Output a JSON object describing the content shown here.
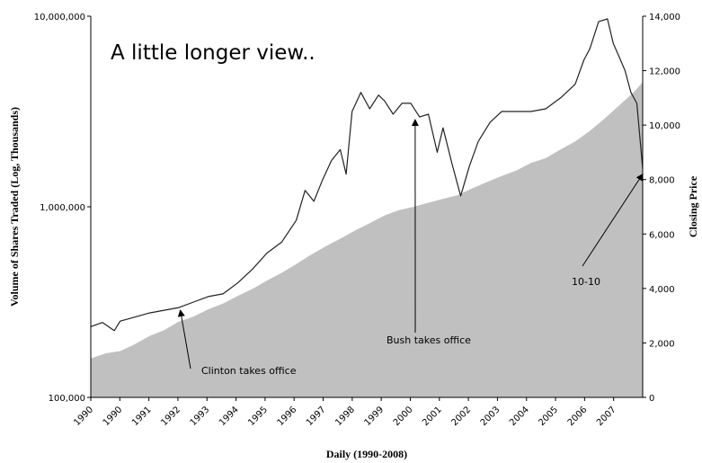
{
  "chart_data": {
    "type": "area",
    "title": "A little longer view..",
    "xlabel": "Daily (1990-2008)",
    "ylabel_left": "Volume of Shares Traded (Log, Thousands)",
    "ylabel_right": "Closing Price",
    "left_axis": {
      "scale": "log",
      "min": 100000,
      "max": 10000000,
      "ticks": [
        "100,000",
        "1,000,000",
        "10,000,000"
      ]
    },
    "right_axis": {
      "scale": "linear",
      "min": 0,
      "max": 14000,
      "ticks": [
        "0",
        "2,000",
        "4,000",
        "6,000",
        "8,000",
        "10,000",
        "12,000",
        "14,000"
      ]
    },
    "x_ticks": [
      "1990",
      "1990",
      "1991",
      "1992",
      "1993",
      "1994",
      "1995",
      "1996",
      "1997",
      "1998",
      "1999",
      "2000",
      "2001",
      "2002",
      "2003",
      "2004",
      "2005",
      "2006",
      "2007"
    ],
    "x_range": [
      1990.0,
      2008.8
    ],
    "series": [
      {
        "kind": "area",
        "axis": "left",
        "color": "#c0c0c0",
        "x": [
          1990.0,
          1990.5,
          1991.0,
          1991.5,
          1992.0,
          1992.5,
          1993.0,
          1993.5,
          1994.0,
          1994.5,
          1995.0,
          1995.5,
          1996.0,
          1996.5,
          1997.0,
          1997.5,
          1998.0,
          1998.5,
          1999.0,
          1999.5,
          2000.0,
          2000.5,
          2001.0,
          2001.5,
          2002.0,
          2002.5,
          2003.0,
          2003.5,
          2004.0,
          2004.5,
          2005.0,
          2005.5,
          2006.0,
          2006.5,
          2007.0,
          2007.5,
          2008.0,
          2008.5,
          2008.8
        ],
        "y": [
          160000,
          170000,
          175000,
          190000,
          210000,
          225000,
          250000,
          265000,
          290000,
          310000,
          340000,
          370000,
          410000,
          450000,
          500000,
          560000,
          620000,
          680000,
          750000,
          820000,
          900000,
          960000,
          1000000,
          1050000,
          1100000,
          1150000,
          1250000,
          1350000,
          1450000,
          1550000,
          1700000,
          1800000,
          2000000,
          2200000,
          2500000,
          2900000,
          3400000,
          4000000,
          4500000
        ]
      },
      {
        "kind": "line",
        "axis": "right",
        "color": "#222222",
        "x": [
          1990.0,
          1990.4,
          1990.8,
          1991.0,
          1991.5,
          1992.0,
          1992.5,
          1993.0,
          1993.5,
          1994.0,
          1994.5,
          1995.0,
          1995.5,
          1996.0,
          1996.5,
          1997.0,
          1997.3,
          1997.6,
          1997.9,
          1998.2,
          1998.5,
          1998.7,
          1998.9,
          1999.2,
          1999.5,
          1999.8,
          2000.0,
          2000.3,
          2000.6,
          2000.9,
          2001.2,
          2001.5,
          2001.8,
          2002.0,
          2002.3,
          2002.6,
          2002.9,
          2003.2,
          2003.6,
          2004.0,
          2004.5,
          2005.0,
          2005.5,
          2006.0,
          2006.5,
          2006.8,
          2007.0,
          2007.3,
          2007.6,
          2007.8,
          2008.0,
          2008.2,
          2008.4,
          2008.6,
          2008.8
        ],
        "y": [
          2600,
          2750,
          2450,
          2800,
          2950,
          3100,
          3200,
          3300,
          3500,
          3700,
          3800,
          4200,
          4700,
          5300,
          5700,
          6500,
          7600,
          7200,
          8000,
          8700,
          9100,
          8200,
          10500,
          11200,
          10600,
          11100,
          10900,
          10400,
          10800,
          10800,
          10300,
          10400,
          9000,
          9900,
          8600,
          7400,
          8500,
          9400,
          10100,
          10500,
          10500,
          10500,
          10600,
          11000,
          11500,
          12400,
          12800,
          13800,
          13900,
          13000,
          12500,
          12000,
          11200,
          10800,
          8400
        ]
      }
    ],
    "annotations": [
      {
        "text": "Clinton takes office",
        "x": 1993.05,
        "y": 3200
      },
      {
        "text": "Bush takes office",
        "x": 2001.05,
        "y": 10200
      },
      {
        "text": "10-10",
        "x": 2008.8,
        "y": 8200
      }
    ]
  }
}
